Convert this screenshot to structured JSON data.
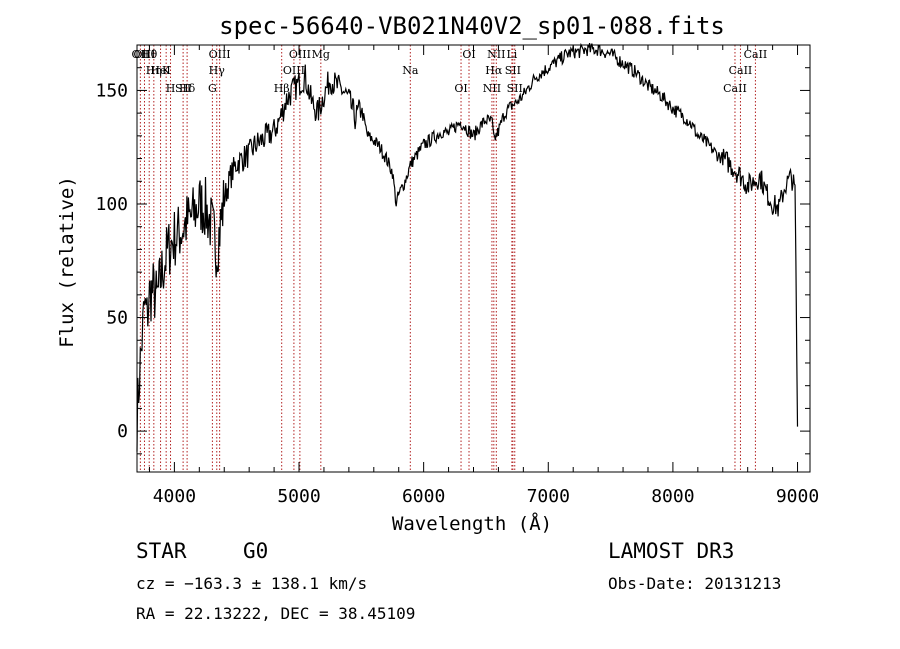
{
  "chart_data": {
    "type": "line",
    "title": "spec-56640-VB021N40V2_sp01-088.fits",
    "xlabel": "Wavelength (Å)",
    "ylabel": "Flux (relative)",
    "xlim": [
      3700,
      9100
    ],
    "ylim": [
      -18,
      170
    ],
    "xticks": [
      4000,
      5000,
      6000,
      7000,
      8000,
      9000
    ],
    "yticks": [
      0,
      50,
      100,
      150
    ],
    "series": [
      {
        "name": "flux",
        "x": [
          3700,
          3720,
          3740,
          3760,
          3780,
          3800,
          3830,
          3860,
          3900,
          3950,
          4000,
          4050,
          4100,
          4150,
          4200,
          4250,
          4300,
          4340,
          4400,
          4450,
          4500,
          4550,
          4600,
          4650,
          4700,
          4750,
          4800,
          4850,
          4900,
          4950,
          5000,
          5050,
          5100,
          5150,
          5200,
          5250,
          5300,
          5350,
          5400,
          5450,
          5500,
          5550,
          5600,
          5650,
          5700,
          5750,
          5780,
          5800,
          5850,
          5900,
          5950,
          6000,
          6050,
          6100,
          6150,
          6200,
          6250,
          6300,
          6350,
          6400,
          6450,
          6500,
          6550,
          6563,
          6600,
          6650,
          6700,
          6750,
          6800,
          6850,
          6900,
          6950,
          7000,
          7050,
          7100,
          7150,
          7200,
          7250,
          7300,
          7350,
          7400,
          7450,
          7500,
          7550,
          7600,
          7650,
          7700,
          7750,
          7800,
          7850,
          7900,
          7950,
          8000,
          8050,
          8100,
          8150,
          8200,
          8250,
          8300,
          8350,
          8400,
          8450,
          8500,
          8550,
          8600,
          8650,
          8700,
          8750,
          8800,
          8850,
          8900,
          8950,
          8980,
          9000
        ],
        "y": [
          5,
          25,
          40,
          55,
          50,
          60,
          62,
          58,
          70,
          80,
          85,
          88,
          92,
          95,
          100,
          98,
          90,
          80,
          102,
          112,
          118,
          120,
          122,
          126,
          128,
          130,
          132,
          138,
          146,
          150,
          153,
          156,
          145,
          140,
          148,
          155,
          152,
          150,
          146,
          138,
          142,
          130,
          128,
          125,
          120,
          114,
          100,
          104,
          110,
          118,
          122,
          126,
          128,
          130,
          132,
          131,
          134,
          136,
          133,
          130,
          134,
          137,
          136,
          128,
          132,
          140,
          143,
          145,
          148,
          152,
          156,
          158,
          160,
          162,
          164,
          166,
          167,
          167,
          168,
          168,
          168,
          167,
          166,
          164,
          162,
          160,
          158,
          155,
          152,
          150,
          148,
          145,
          142,
          140,
          138,
          135,
          130,
          128,
          125,
          122,
          120,
          118,
          115,
          112,
          108,
          110,
          112,
          105,
          100,
          98,
          108,
          112,
          106,
          2
        ]
      }
    ],
    "lines": [
      {
        "label": "Hθ",
        "x": 3798
      },
      {
        "label": "K",
        "x": 3934
      },
      {
        "label": "Hδ",
        "x": 4102
      },
      {
        "label": "OII",
        "x": 3727
      },
      {
        "label": "HeI",
        "x": 3889
      },
      {
        "label": "SII",
        "x": 4070
      },
      {
        "label": "OIII",
        "x": 3760
      },
      {
        "label": "Hη",
        "x": 3835
      },
      {
        "label": "H",
        "x": 3969
      },
      {
        "label": "OIII",
        "x": 4363
      },
      {
        "label": "Hγ",
        "x": 4340
      },
      {
        "label": "G",
        "x": 4305
      },
      {
        "label": "OIII",
        "x": 5007
      },
      {
        "label": "OIII",
        "x": 4959
      },
      {
        "label": "Hβ",
        "x": 4861
      },
      {
        "label": "Mg",
        "x": 5175
      },
      {
        "label": "Na",
        "x": 5893
      },
      {
        "label": "OI",
        "x": 6300
      },
      {
        "label": "OI",
        "x": 6364
      },
      {
        "label": "Hα",
        "x": 6563
      },
      {
        "label": "NII",
        "x": 6548
      },
      {
        "label": "NII",
        "x": 6583
      },
      {
        "label": "SII",
        "x": 6716
      },
      {
        "label": "SII",
        "x": 6731
      },
      {
        "label": "Li",
        "x": 6708
      },
      {
        "label": "CaII",
        "x": 8542
      },
      {
        "label": "CaII",
        "x": 8498
      },
      {
        "label": "CaII",
        "x": 8662
      }
    ]
  },
  "info": {
    "class_label": "STAR",
    "subclass": "G0",
    "survey": "LAMOST DR3",
    "cz": "cz = −163.3 ± 138.1 km/s",
    "obs_date": "Obs-Date: 20131213",
    "radec": "RA =  22.13222, DEC =  38.45109"
  }
}
